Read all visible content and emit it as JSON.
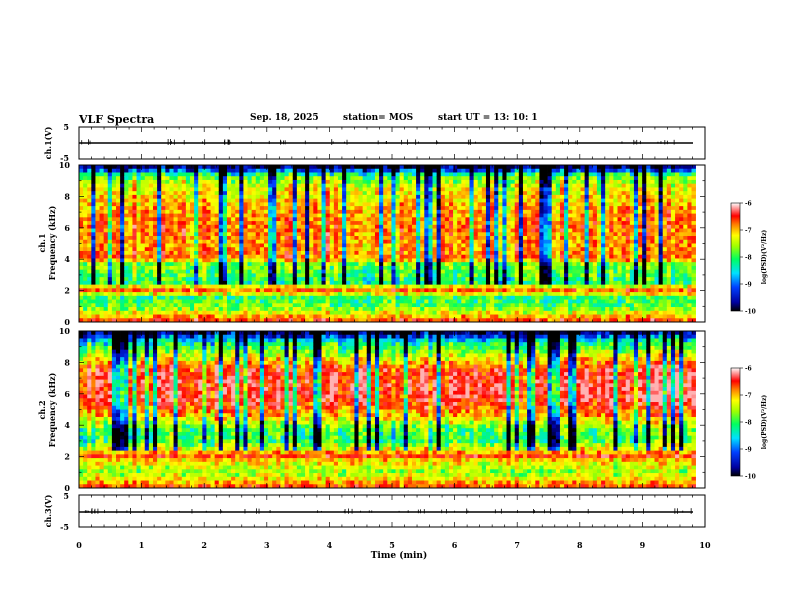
{
  "header": {
    "title": "VLF Spectra",
    "date": "Sep. 18, 2025",
    "station": "station= MOS",
    "start": "start  UT  =   13: 10: 1"
  },
  "colors": {
    "colormap": [
      "#000080",
      "#0000ff",
      "#00a0ff",
      "#00ffff",
      "#00ff60",
      "#80ff00",
      "#ffff00",
      "#ff8000",
      "#ff0000",
      "#ffd0d0",
      "#ffffff"
    ]
  },
  "chart_data": [
    {
      "type": "line",
      "name": "ch1-voltage",
      "ylabel": "ch.1(V)",
      "ylim": [
        -5,
        5
      ],
      "yticks": [
        "5",
        "-5"
      ],
      "xlim": [
        0,
        10
      ],
      "baseline_v": 0
    },
    {
      "type": "heatmap",
      "name": "ch1-spectrogram",
      "ylabel": [
        "ch.1",
        "Frequency (kHz)"
      ],
      "ylim": [
        0,
        10
      ],
      "yticks": [
        "0",
        "2",
        "4",
        "6",
        "8",
        "10"
      ],
      "xlim": [
        0,
        9.85
      ],
      "band_profile_khz": [
        [
          0,
          0.9
        ],
        [
          0.3,
          0.75
        ],
        [
          1.0,
          0.5
        ],
        [
          1.7,
          0.45
        ],
        [
          1.9,
          0.9
        ],
        [
          2.5,
          0.45
        ],
        [
          3.8,
          0.55
        ],
        [
          4.0,
          0.8
        ],
        [
          5.0,
          0.75
        ],
        [
          6.0,
          0.8
        ],
        [
          7.0,
          0.75
        ],
        [
          8.5,
          0.65
        ],
        [
          9.3,
          0.5
        ],
        [
          9.8,
          0.1
        ],
        [
          10,
          0.05
        ]
      ],
      "colorbar": {
        "label": "log(PSD)(V²/Hz)",
        "range": [
          -10,
          -6
        ],
        "ticks": [
          "-6",
          "-7",
          "-8",
          "-9",
          "-10"
        ]
      }
    },
    {
      "type": "heatmap",
      "name": "ch2-spectrogram",
      "ylabel": [
        "ch.2",
        "Frequency (kHz)"
      ],
      "ylim": [
        0,
        10
      ],
      "yticks": [
        "0",
        "2",
        "4",
        "6",
        "8",
        "10"
      ],
      "xlim": [
        0,
        9.85
      ],
      "band_profile_khz": [
        [
          0,
          0.85
        ],
        [
          0.5,
          0.7
        ],
        [
          1.0,
          0.55
        ],
        [
          1.8,
          0.7
        ],
        [
          2.0,
          0.85
        ],
        [
          3.0,
          0.45
        ],
        [
          3.8,
          0.5
        ],
        [
          4.5,
          0.7
        ],
        [
          5.5,
          0.9
        ],
        [
          6.5,
          0.92
        ],
        [
          7.5,
          0.88
        ],
        [
          8.5,
          0.6
        ],
        [
          9.3,
          0.4
        ],
        [
          9.8,
          0.1
        ],
        [
          10,
          0.05
        ]
      ],
      "colorbar": {
        "label": "log(PSD)(V²/Hz)",
        "range": [
          -10,
          -6
        ],
        "ticks": [
          "-6",
          "-7",
          "-8",
          "-9",
          "-10"
        ]
      }
    },
    {
      "type": "line",
      "name": "ch3-voltage",
      "ylabel": "ch.3(V)",
      "ylim": [
        -5,
        5
      ],
      "yticks": [
        "5",
        "-5"
      ],
      "xlim": [
        0,
        10
      ],
      "baseline_v": 0
    }
  ],
  "xaxis": {
    "label": "Time (min)",
    "range": [
      0,
      10
    ],
    "ticks": [
      "0",
      "1",
      "2",
      "3",
      "4",
      "5",
      "6",
      "7",
      "8",
      "9",
      "10"
    ]
  }
}
